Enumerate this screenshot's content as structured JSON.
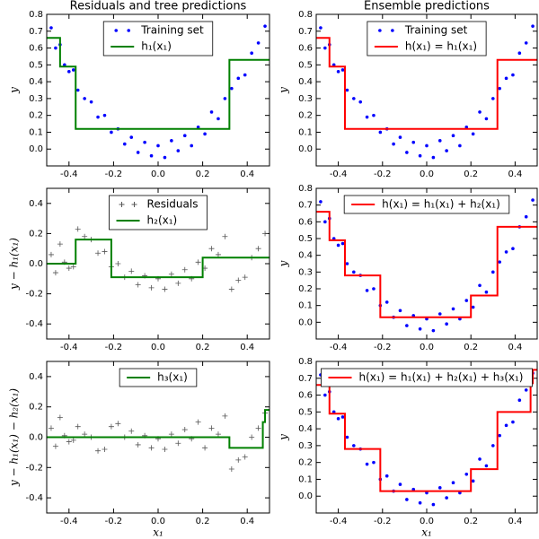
{
  "chart_data": [
    {
      "type": "scatter",
      "title": "Residuals and tree predictions",
      "ylabel": "y",
      "legend": "upper center",
      "xlim": [
        -0.5,
        0.5
      ],
      "ylim": [
        -0.1,
        0.8
      ],
      "xticks": [
        -0.4,
        -0.2,
        {
          "value": 0,
          "label": "0.0"
        },
        0.2,
        0.4
      ],
      "yticks": [
        {
          "value": 0,
          "label": "0.0"
        },
        0.1,
        0.2,
        0.3,
        0.4,
        0.5,
        0.6,
        0.7,
        0.8
      ],
      "series": [
        {
          "name": "Training set",
          "color": "#0000ff",
          "marker": "dot",
          "x": [
            -0.48,
            -0.46,
            -0.44,
            -0.42,
            -0.4,
            -0.38,
            -0.36,
            -0.33,
            -0.3,
            -0.27,
            -0.24,
            -0.21,
            -0.18,
            -0.15,
            -0.12,
            -0.09,
            -0.06,
            -0.03,
            0,
            0.03,
            0.06,
            0.09,
            0.12,
            0.15,
            0.18,
            0.21,
            0.24,
            0.27,
            0.3,
            0.33,
            0.36,
            0.39,
            0.42,
            0.45,
            0.48
          ],
          "values": [
            0.72,
            0.6,
            0.62,
            0.5,
            0.46,
            0.47,
            0.35,
            0.3,
            0.28,
            0.19,
            0.2,
            0.1,
            0.12,
            0.03,
            0.07,
            -0.02,
            0.04,
            -0.04,
            0.02,
            -0.05,
            0.05,
            -0.01,
            0.08,
            0.02,
            0.13,
            0.09,
            0.22,
            0.18,
            0.3,
            0.36,
            0.42,
            0.44,
            0.57,
            0.63,
            0.73
          ]
        },
        {
          "name": "h₁(x₁)",
          "color": "#008000",
          "marker": "step",
          "x": [
            -0.5,
            -0.44,
            -0.44,
            -0.37,
            -0.37,
            0.32,
            0.32,
            0.5
          ],
          "values": [
            0.66,
            0.66,
            0.49,
            0.49,
            0.12,
            0.12,
            0.53,
            0.53
          ]
        }
      ]
    },
    {
      "type": "scatter",
      "title": "Ensemble predictions",
      "ylabel": "y",
      "legend": "upper center",
      "xlim": [
        -0.5,
        0.5
      ],
      "ylim": [
        -0.1,
        0.8
      ],
      "xticks": [
        -0.4,
        -0.2,
        {
          "value": 0,
          "label": "0.0"
        },
        0.2,
        0.4
      ],
      "yticks": [
        {
          "value": 0,
          "label": "0.0"
        },
        0.1,
        0.2,
        0.3,
        0.4,
        0.5,
        0.6,
        0.7,
        0.8
      ],
      "series": [
        {
          "name": "Training set",
          "color": "#0000ff",
          "marker": "dot",
          "x": [
            -0.48,
            -0.46,
            -0.44,
            -0.42,
            -0.4,
            -0.38,
            -0.36,
            -0.33,
            -0.3,
            -0.27,
            -0.24,
            -0.21,
            -0.18,
            -0.15,
            -0.12,
            -0.09,
            -0.06,
            -0.03,
            0,
            0.03,
            0.06,
            0.09,
            0.12,
            0.15,
            0.18,
            0.21,
            0.24,
            0.27,
            0.3,
            0.33,
            0.36,
            0.39,
            0.42,
            0.45,
            0.48
          ],
          "values": [
            0.72,
            0.6,
            0.62,
            0.5,
            0.46,
            0.47,
            0.35,
            0.3,
            0.28,
            0.19,
            0.2,
            0.1,
            0.12,
            0.03,
            0.07,
            -0.02,
            0.04,
            -0.04,
            0.02,
            -0.05,
            0.05,
            -0.01,
            0.08,
            0.02,
            0.13,
            0.09,
            0.22,
            0.18,
            0.3,
            0.36,
            0.42,
            0.44,
            0.57,
            0.63,
            0.73
          ]
        },
        {
          "name": "h(x₁) = h₁(x₁)",
          "color": "#ff0000",
          "marker": "step",
          "x": [
            -0.5,
            -0.44,
            -0.44,
            -0.37,
            -0.37,
            0.32,
            0.32,
            0.5
          ],
          "values": [
            0.66,
            0.66,
            0.49,
            0.49,
            0.12,
            0.12,
            0.53,
            0.53
          ]
        }
      ]
    },
    {
      "type": "scatter",
      "ylabel": "y − h₁(x₁)",
      "legend": "upper center",
      "xlim": [
        -0.5,
        0.5
      ],
      "ylim": [
        -0.5,
        0.5
      ],
      "xticks": [
        -0.4,
        -0.2,
        {
          "value": 0,
          "label": "0.0"
        },
        0.2,
        0.4
      ],
      "yticks": [
        -0.4,
        -0.2,
        {
          "value": 0,
          "label": "0.0"
        },
        0.2,
        0.4
      ],
      "series": [
        {
          "name": "Residuals",
          "color": "#555555",
          "marker": "plus",
          "x": [
            -0.48,
            -0.46,
            -0.44,
            -0.42,
            -0.4,
            -0.38,
            -0.36,
            -0.33,
            -0.3,
            -0.27,
            -0.24,
            -0.21,
            -0.18,
            -0.15,
            -0.12,
            -0.09,
            -0.06,
            -0.03,
            0,
            0.03,
            0.06,
            0.09,
            0.12,
            0.15,
            0.18,
            0.21,
            0.24,
            0.27,
            0.3,
            0.33,
            0.36,
            0.39,
            0.42,
            0.45,
            0.48
          ],
          "values": [
            0.06,
            -0.06,
            0.13,
            0.01,
            -0.03,
            -0.02,
            0.23,
            0.18,
            0.16,
            0.07,
            0.08,
            -0.02,
            0,
            -0.09,
            -0.05,
            -0.14,
            -0.08,
            -0.16,
            -0.1,
            -0.17,
            -0.07,
            -0.13,
            -0.04,
            -0.1,
            0.01,
            -0.03,
            0.1,
            0.06,
            0.18,
            -0.17,
            -0.11,
            -0.09,
            0.04,
            0.1,
            0.2
          ]
        },
        {
          "name": "h₂(x₁)",
          "color": "#008000",
          "marker": "step",
          "x": [
            -0.5,
            -0.37,
            -0.37,
            -0.21,
            -0.21,
            0.2,
            0.2,
            0.5
          ],
          "values": [
            0,
            0,
            0.16,
            0.16,
            -0.09,
            -0.09,
            0.04,
            0.04
          ]
        }
      ]
    },
    {
      "type": "scatter",
      "ylabel": "y",
      "legend": "upper center",
      "xlim": [
        -0.5,
        0.5
      ],
      "ylim": [
        -0.1,
        0.8
      ],
      "xticks": [
        -0.4,
        -0.2,
        {
          "value": 0,
          "label": "0.0"
        },
        0.2,
        0.4
      ],
      "yticks": [
        {
          "value": 0,
          "label": "0.0"
        },
        0.1,
        0.2,
        0.3,
        0.4,
        0.5,
        0.6,
        0.7,
        0.8
      ],
      "series": [
        {
          "color": "#0000ff",
          "marker": "dot",
          "x": [
            -0.48,
            -0.46,
            -0.44,
            -0.42,
            -0.4,
            -0.38,
            -0.36,
            -0.33,
            -0.3,
            -0.27,
            -0.24,
            -0.21,
            -0.18,
            -0.15,
            -0.12,
            -0.09,
            -0.06,
            -0.03,
            0,
            0.03,
            0.06,
            0.09,
            0.12,
            0.15,
            0.18,
            0.21,
            0.24,
            0.27,
            0.3,
            0.33,
            0.36,
            0.39,
            0.42,
            0.45,
            0.48
          ],
          "values": [
            0.72,
            0.6,
            0.62,
            0.5,
            0.46,
            0.47,
            0.35,
            0.3,
            0.28,
            0.19,
            0.2,
            0.1,
            0.12,
            0.03,
            0.07,
            -0.02,
            0.04,
            -0.04,
            0.02,
            -0.05,
            0.05,
            -0.01,
            0.08,
            0.02,
            0.13,
            0.09,
            0.22,
            0.18,
            0.3,
            0.36,
            0.42,
            0.44,
            0.57,
            0.63,
            0.73
          ]
        },
        {
          "name": "h(x₁) = h₁(x₁) + h₂(x₁)",
          "color": "#ff0000",
          "marker": "step",
          "x": [
            -0.5,
            -0.44,
            -0.44,
            -0.37,
            -0.37,
            -0.21,
            -0.21,
            0.2,
            0.2,
            0.32,
            0.32,
            0.5
          ],
          "values": [
            0.66,
            0.66,
            0.49,
            0.49,
            0.28,
            0.28,
            0.03,
            0.03,
            0.16,
            0.16,
            0.57,
            0.57
          ]
        }
      ]
    },
    {
      "type": "scatter",
      "xlabel": "x₁",
      "ylabel": "y − h₁(x₁) − h₂(x₁)",
      "legend": "upper center",
      "xlim": [
        -0.5,
        0.5
      ],
      "ylim": [
        -0.5,
        0.5
      ],
      "xticks": [
        -0.4,
        -0.2,
        {
          "value": 0,
          "label": "0.0"
        },
        0.2,
        0.4
      ],
      "yticks": [
        -0.4,
        -0.2,
        {
          "value": 0,
          "label": "0.0"
        },
        0.2,
        0.4
      ],
      "series": [
        {
          "color": "#555555",
          "marker": "plus",
          "x": [
            -0.48,
            -0.46,
            -0.44,
            -0.42,
            -0.4,
            -0.38,
            -0.36,
            -0.33,
            -0.3,
            -0.27,
            -0.24,
            -0.21,
            -0.18,
            -0.15,
            -0.12,
            -0.09,
            -0.06,
            -0.03,
            0,
            0.03,
            0.06,
            0.09,
            0.12,
            0.15,
            0.18,
            0.21,
            0.24,
            0.27,
            0.3,
            0.33,
            0.36,
            0.39,
            0.42,
            0.45,
            0.48
          ],
          "values": [
            0.06,
            -0.06,
            0.13,
            0.01,
            -0.03,
            -0.02,
            0.07,
            0.02,
            0,
            -0.09,
            -0.08,
            0.07,
            0.09,
            0,
            0.04,
            -0.05,
            0.01,
            -0.07,
            -0.01,
            -0.08,
            0.02,
            -0.04,
            0.05,
            -0.01,
            0.1,
            -0.07,
            0.06,
            0.02,
            0.14,
            -0.21,
            -0.15,
            -0.13,
            0,
            0.06,
            0.16
          ]
        },
        {
          "name": "h₃(x₁)",
          "color": "#008000",
          "marker": "step",
          "x": [
            -0.5,
            0.32,
            0.32,
            0.47,
            0.47,
            0.48,
            0.48,
            0.5
          ],
          "values": [
            0,
            0,
            -0.07,
            -0.07,
            0.1,
            0.1,
            0.18,
            0.18
          ]
        }
      ]
    },
    {
      "type": "scatter",
      "xlabel": "x₁",
      "ylabel": "y",
      "legend": "upper center",
      "xlim": [
        -0.5,
        0.5
      ],
      "ylim": [
        -0.1,
        0.8
      ],
      "xticks": [
        -0.4,
        -0.2,
        {
          "value": 0,
          "label": "0.0"
        },
        0.2,
        0.4
      ],
      "yticks": [
        {
          "value": 0,
          "label": "0.0"
        },
        0.1,
        0.2,
        0.3,
        0.4,
        0.5,
        0.6,
        0.7,
        0.8
      ],
      "series": [
        {
          "color": "#0000ff",
          "marker": "dot",
          "x": [
            -0.48,
            -0.46,
            -0.44,
            -0.42,
            -0.4,
            -0.38,
            -0.36,
            -0.33,
            -0.3,
            -0.27,
            -0.24,
            -0.21,
            -0.18,
            -0.15,
            -0.12,
            -0.09,
            -0.06,
            -0.03,
            0,
            0.03,
            0.06,
            0.09,
            0.12,
            0.15,
            0.18,
            0.21,
            0.24,
            0.27,
            0.3,
            0.33,
            0.36,
            0.39,
            0.42,
            0.45,
            0.48
          ],
          "values": [
            0.72,
            0.6,
            0.62,
            0.5,
            0.46,
            0.47,
            0.35,
            0.3,
            0.28,
            0.19,
            0.2,
            0.1,
            0.12,
            0.03,
            0.07,
            -0.02,
            0.04,
            -0.04,
            0.02,
            -0.05,
            0.05,
            -0.01,
            0.08,
            0.02,
            0.13,
            0.09,
            0.22,
            0.18,
            0.3,
            0.36,
            0.42,
            0.44,
            0.57,
            0.63,
            0.73
          ]
        },
        {
          "name": "h(x₁) = h₁(x₁) + h₂(x₁) + h₃(x₁)",
          "color": "#ff0000",
          "marker": "step",
          "x": [
            -0.5,
            -0.44,
            -0.44,
            -0.37,
            -0.37,
            -0.21,
            -0.21,
            0.2,
            0.2,
            0.32,
            0.32,
            0.47,
            0.47,
            0.48,
            0.48,
            0.5
          ],
          "values": [
            0.66,
            0.66,
            0.49,
            0.49,
            0.28,
            0.28,
            0.03,
            0.03,
            0.16,
            0.16,
            0.5,
            0.5,
            0.67,
            0.67,
            0.75,
            0.75
          ]
        }
      ]
    }
  ]
}
